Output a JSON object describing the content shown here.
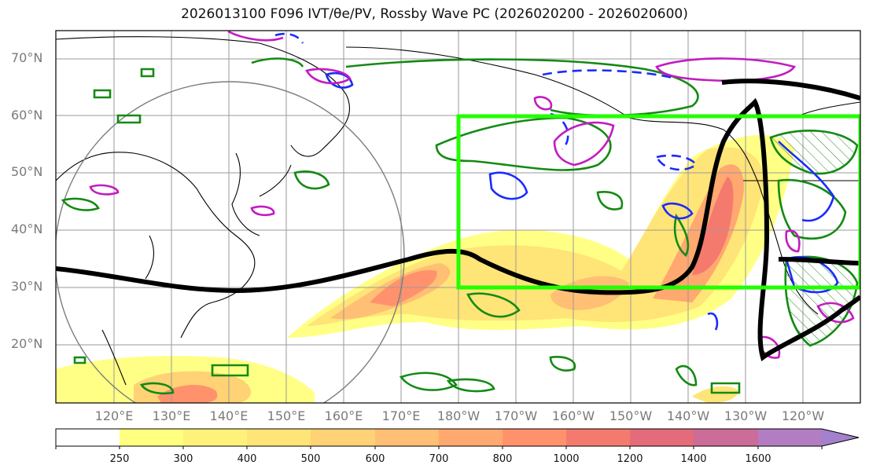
{
  "title": "2026013100 F096 IVT/θe/PV, Rossby Wave PC (2026020200 - 2026020600)",
  "map": {
    "lat_labels": [
      "70°N",
      "60°N",
      "50°N",
      "40°N",
      "30°N",
      "20°N"
    ],
    "lon_labels": [
      "120°E",
      "130°E",
      "140°E",
      "150°E",
      "160°E",
      "170°E",
      "180°W",
      "170°W",
      "160°W",
      "150°W",
      "140°W",
      "130°W",
      "120°W"
    ],
    "layers": {
      "ivt_fill": "IVT shading (yellow-orange-red)",
      "theta_e_contours": "green",
      "pv_contours": [
        "blue",
        "magenta"
      ],
      "wave_path_color": "#000000",
      "box_color": "#22ff00"
    }
  },
  "colorbar": {
    "ticks": [
      "250",
      "300",
      "400",
      "500",
      "600",
      "700",
      "800",
      "1000",
      "1200",
      "1400",
      "1600"
    ],
    "colors": [
      "#ffff80",
      "#fff27a",
      "#ffe477",
      "#ffd276",
      "#ffbf74",
      "#ffa870",
      "#ff926d",
      "#f57a6e",
      "#e46b79",
      "#cc6c99",
      "#b27dc2",
      "#a481cc"
    ]
  }
}
